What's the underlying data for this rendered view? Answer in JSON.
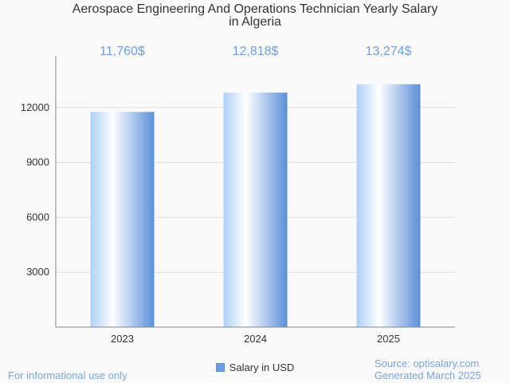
{
  "colors": {
    "accent": "#6b9fe6",
    "bar_dark": "#5a8fd8",
    "bar_mid": "#aed0f8",
    "bar_light": "#ffffff",
    "footer_text": "#7aa4de"
  },
  "footer": {
    "disclaimer": "For informational use only",
    "source": "Source: optisalary.com",
    "generated": "Generated March 2025"
  },
  "chart_data": {
    "type": "bar",
    "title_line1": "Aerospace Engineering And Operations Technician Yearly Salary",
    "title_line2": "in Algeria",
    "categories": [
      "2023",
      "2024",
      "2025"
    ],
    "series": [
      {
        "name": "Salary in USD",
        "values": [
          11760,
          12818,
          13274
        ],
        "labels": [
          "11,760$",
          "12,818$",
          "13,274$"
        ]
      }
    ],
    "yticks": [
      3000,
      6000,
      9000,
      12000
    ],
    "ylim": [
      0,
      15000
    ],
    "grid": true,
    "legend_position": "bottom"
  }
}
